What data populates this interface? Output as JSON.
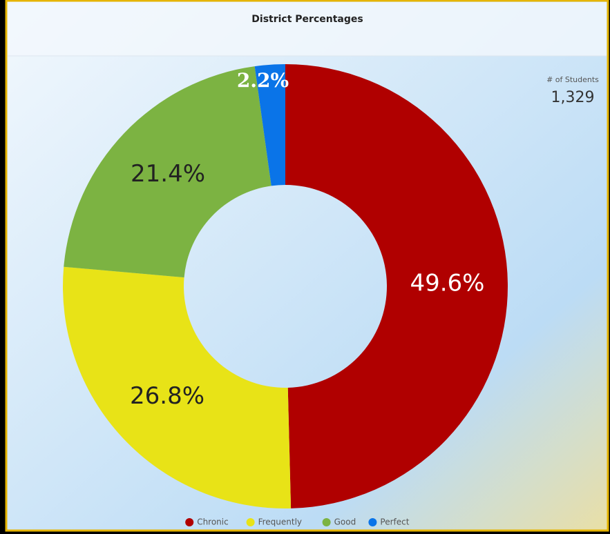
{
  "chart_data": {
    "type": "pie",
    "title": "District Percentages",
    "categories": [
      "Chronic",
      "Frequently",
      "Good",
      "Perfect"
    ],
    "values": [
      49.6,
      26.8,
      21.4,
      2.2
    ],
    "value_labels": [
      "49.6%",
      "26.8%",
      "21.4%",
      "2.2%"
    ],
    "colors": [
      "#b00000",
      "#e8e317",
      "#7cb342",
      "#0a74e8"
    ],
    "legend": "bottom"
  },
  "stat": {
    "label": "# of Students",
    "value": "1,329"
  }
}
